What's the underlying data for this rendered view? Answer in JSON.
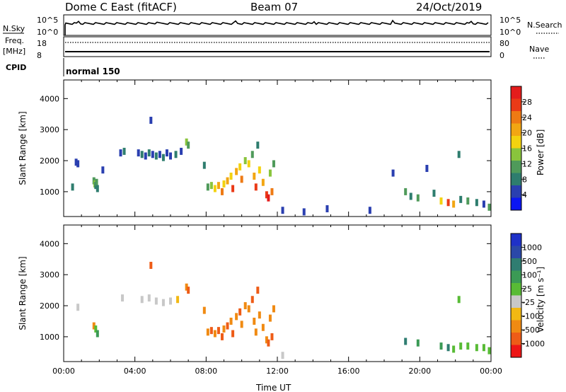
{
  "header": {
    "radar": "Dome C East (fitACF)",
    "beam": "Beam 07",
    "date": "24/Oct/2019"
  },
  "status_panels": {
    "nsky_label": "N.Sky",
    "nsky_ticks": [
      "10^5",
      "10^0"
    ],
    "nsearch_label": "N.Search",
    "nsearch_ticks": [
      "10^5",
      "10^0"
    ],
    "freq_label": "Freq.",
    "freq_unit": "[MHz]",
    "freq_ticks": [
      "18",
      "8"
    ],
    "nave_label": "Nave",
    "nave_ticks": [
      "80",
      "0"
    ],
    "cpid_label": "CPID",
    "cpid_value": "normal 150"
  },
  "colors": {
    "power": [
      "#0b16f2",
      "#2a3fb0",
      "#2e7d6e",
      "#4f9a5a",
      "#89c43c",
      "#f3d20f",
      "#f2a613",
      "#ee7a14",
      "#ea3a17",
      "#e41c1c"
    ],
    "velocity": [
      "#ee1616",
      "#ee5c17",
      "#f08a12",
      "#f2b813",
      "#c8c8c8",
      "#58bb35",
      "#3b9a55",
      "#2f7d71",
      "#2a48a8",
      "#1e31c8"
    ]
  },
  "chart_data": [
    {
      "type": "heatmap",
      "name": "power",
      "ylabel": "Slant Range [km]",
      "yticks": [
        1000,
        2000,
        3000,
        4000
      ],
      "ylim": [
        200,
        4600
      ],
      "xlim": [
        0,
        24
      ],
      "colorbar_label": "Power [dB]",
      "colorbar_ticks": [
        "4",
        "8",
        "12",
        "16",
        "20",
        "24",
        "28"
      ],
      "colorbar_range": [
        0,
        32
      ],
      "points": [
        [
          0.7,
          1950,
          1
        ],
        [
          0.8,
          1900,
          1
        ],
        [
          0.5,
          1150,
          2
        ],
        [
          1.7,
          1350,
          3
        ],
        [
          1.75,
          1250,
          4
        ],
        [
          1.8,
          1200,
          2
        ],
        [
          1.85,
          1300,
          3
        ],
        [
          1.9,
          1100,
          2
        ],
        [
          2.2,
          1700,
          1
        ],
        [
          3.2,
          2250,
          1
        ],
        [
          3.4,
          2300,
          2
        ],
        [
          4.2,
          2250,
          1
        ],
        [
          4.4,
          2200,
          2
        ],
        [
          4.6,
          2150,
          1
        ],
        [
          4.8,
          2250,
          2
        ],
        [
          5.0,
          2200,
          1
        ],
        [
          5.2,
          2150,
          2
        ],
        [
          5.4,
          2200,
          1
        ],
        [
          5.6,
          2100,
          2
        ],
        [
          5.8,
          2250,
          1
        ],
        [
          6.0,
          2150,
          1
        ],
        [
          6.3,
          2200,
          2
        ],
        [
          6.6,
          2300,
          1
        ],
        [
          6.9,
          2600,
          4
        ],
        [
          7.0,
          2500,
          3
        ],
        [
          4.9,
          3300,
          1
        ],
        [
          7.9,
          1850,
          2
        ],
        [
          8.1,
          1150,
          3
        ],
        [
          8.3,
          1200,
          4
        ],
        [
          8.5,
          1100,
          5
        ],
        [
          8.7,
          1200,
          6
        ],
        [
          8.9,
          1000,
          7
        ],
        [
          9.0,
          1250,
          5
        ],
        [
          9.2,
          1350,
          6
        ],
        [
          9.4,
          1500,
          5
        ],
        [
          9.5,
          1100,
          8
        ],
        [
          9.7,
          1650,
          6
        ],
        [
          9.9,
          1800,
          5
        ],
        [
          10.0,
          1400,
          7
        ],
        [
          10.2,
          2000,
          4
        ],
        [
          10.4,
          1900,
          5
        ],
        [
          10.6,
          2200,
          3
        ],
        [
          10.7,
          1500,
          6
        ],
        [
          10.8,
          1150,
          8
        ],
        [
          10.9,
          2500,
          2
        ],
        [
          11.0,
          1700,
          5
        ],
        [
          11.2,
          1300,
          6
        ],
        [
          11.4,
          900,
          8
        ],
        [
          11.5,
          800,
          9
        ],
        [
          11.6,
          1600,
          4
        ],
        [
          11.7,
          1000,
          7
        ],
        [
          11.8,
          1900,
          3
        ],
        [
          12.3,
          400,
          1
        ],
        [
          13.5,
          350,
          1
        ],
        [
          17.2,
          400,
          1
        ],
        [
          18.5,
          1600,
          1
        ],
        [
          19.2,
          1000,
          3
        ],
        [
          19.5,
          850,
          2
        ],
        [
          19.9,
          800,
          3
        ],
        [
          20.4,
          1750,
          1
        ],
        [
          20.8,
          950,
          2
        ],
        [
          21.2,
          700,
          5
        ],
        [
          21.6,
          650,
          8
        ],
        [
          21.9,
          600,
          6
        ],
        [
          22.3,
          750,
          2
        ],
        [
          22.7,
          700,
          3
        ],
        [
          23.2,
          650,
          2
        ],
        [
          23.6,
          600,
          1
        ],
        [
          23.9,
          500,
          3
        ],
        [
          22.2,
          2200,
          2
        ],
        [
          14.8,
          450,
          1
        ]
      ]
    },
    {
      "type": "heatmap",
      "name": "velocity",
      "ylabel": "Slant Range [km]",
      "yticks": [
        1000,
        2000,
        3000,
        4000
      ],
      "ylim": [
        200,
        4600
      ],
      "xlim": [
        0,
        24
      ],
      "xticks": [
        "00:00",
        "04:00",
        "08:00",
        "12:00",
        "16:00",
        "20:00",
        "00:00"
      ],
      "xlabel": "Time UT",
      "colorbar_label": "Velocity [m s⁻¹]",
      "colorbar_ticks": [
        "-1000",
        "-500",
        "-100",
        "-25",
        "25",
        "100",
        "500",
        "1000"
      ],
      "points": [
        [
          0.8,
          1950,
          4
        ],
        [
          1.7,
          1350,
          2
        ],
        [
          1.8,
          1250,
          5
        ],
        [
          1.9,
          1100,
          6
        ],
        [
          3.3,
          2250,
          4
        ],
        [
          4.4,
          2200,
          4
        ],
        [
          4.8,
          2250,
          4
        ],
        [
          5.2,
          2150,
          4
        ],
        [
          5.6,
          2100,
          4
        ],
        [
          6.0,
          2150,
          4
        ],
        [
          6.4,
          2200,
          3
        ],
        [
          6.9,
          2600,
          2
        ],
        [
          7.0,
          2500,
          1
        ],
        [
          4.9,
          3300,
          1
        ],
        [
          7.9,
          1850,
          2
        ],
        [
          8.1,
          1150,
          2
        ],
        [
          8.3,
          1200,
          1
        ],
        [
          8.5,
          1100,
          2
        ],
        [
          8.7,
          1200,
          1
        ],
        [
          8.9,
          1000,
          1
        ],
        [
          9.0,
          1250,
          2
        ],
        [
          9.2,
          1350,
          1
        ],
        [
          9.4,
          1500,
          2
        ],
        [
          9.5,
          1100,
          1
        ],
        [
          9.7,
          1650,
          2
        ],
        [
          9.9,
          1800,
          1
        ],
        [
          10.0,
          1400,
          2
        ],
        [
          10.2,
          2000,
          2
        ],
        [
          10.4,
          1900,
          2
        ],
        [
          10.6,
          2200,
          1
        ],
        [
          10.7,
          1500,
          2
        ],
        [
          10.8,
          1150,
          2
        ],
        [
          10.9,
          2500,
          1
        ],
        [
          11.0,
          1700,
          2
        ],
        [
          11.2,
          1300,
          2
        ],
        [
          11.4,
          900,
          2
        ],
        [
          11.5,
          800,
          1
        ],
        [
          11.6,
          1600,
          2
        ],
        [
          11.7,
          1000,
          1
        ],
        [
          11.8,
          1900,
          2
        ],
        [
          12.3,
          400,
          4
        ],
        [
          19.2,
          850,
          7
        ],
        [
          19.9,
          800,
          6
        ],
        [
          21.2,
          700,
          6
        ],
        [
          21.6,
          650,
          7
        ],
        [
          21.9,
          600,
          5
        ],
        [
          22.3,
          700,
          5
        ],
        [
          22.7,
          700,
          5
        ],
        [
          23.2,
          650,
          5
        ],
        [
          23.6,
          650,
          5
        ],
        [
          23.9,
          550,
          5
        ],
        [
          22.2,
          2200,
          5
        ]
      ]
    }
  ]
}
